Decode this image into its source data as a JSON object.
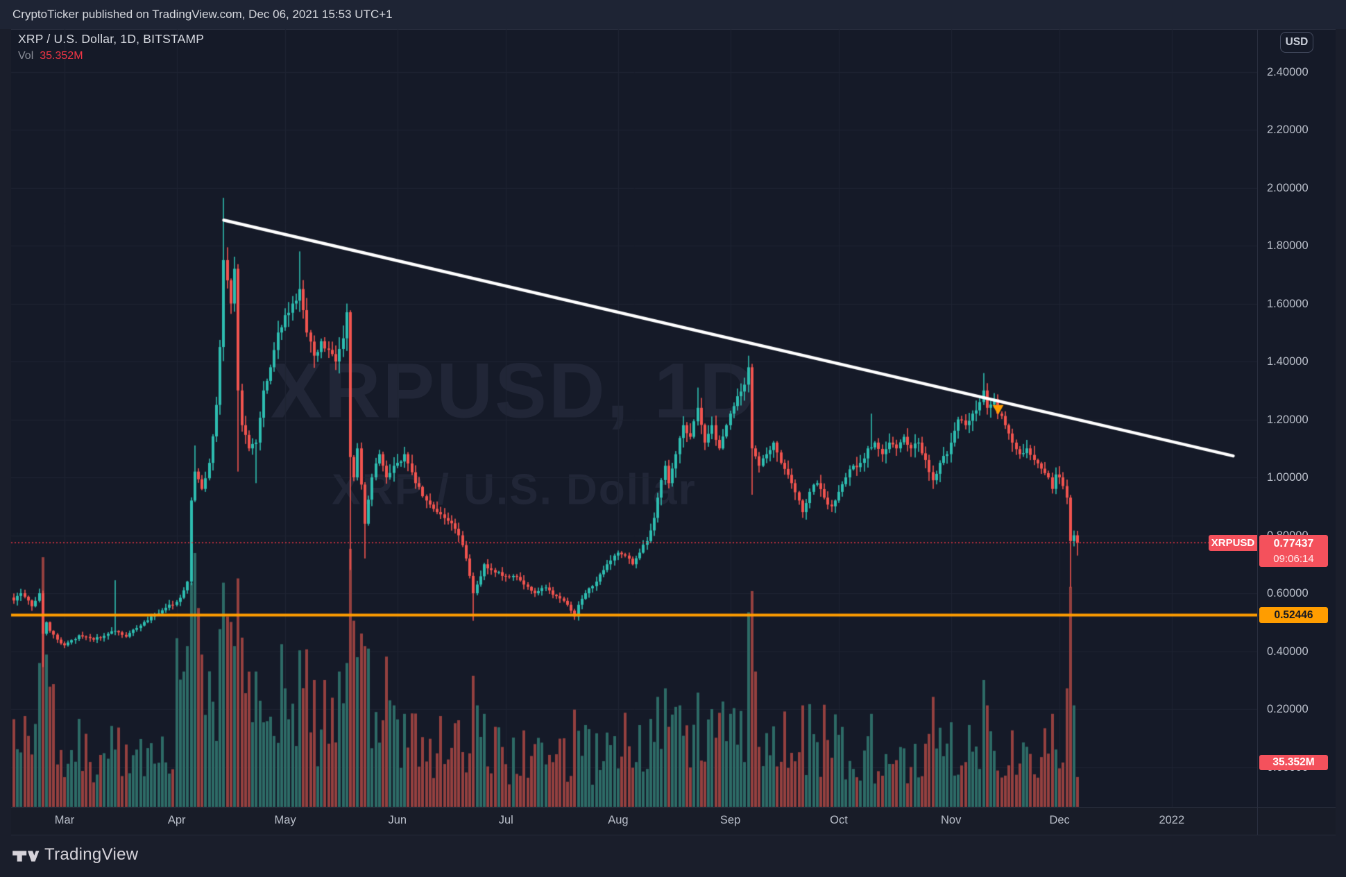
{
  "publish_bar": {
    "text": "CryptoTicker published on TradingView.com, Dec 06, 2021 15:53 UTC+1"
  },
  "header": {
    "symbol_line": "XRP / U.S. Dollar, 1D, BITSTAMP",
    "vol_label": "Vol",
    "vol_value": "35.352M"
  },
  "watermark": {
    "line1": "XRPUSD, 1D",
    "line2": "XRP / U.S. Dollar"
  },
  "price_axis": {
    "currency_badge": "USD",
    "labels": [
      {
        "text": "2.40000",
        "price": 2.4
      },
      {
        "text": "2.20000",
        "price": 2.2
      },
      {
        "text": "2.00000",
        "price": 2.0
      },
      {
        "text": "1.80000",
        "price": 1.8
      },
      {
        "text": "1.60000",
        "price": 1.6
      },
      {
        "text": "1.40000",
        "price": 1.4
      },
      {
        "text": "1.20000",
        "price": 1.2
      },
      {
        "text": "1.00000",
        "price": 1.0
      },
      {
        "text": "0.80000",
        "price": 0.8
      },
      {
        "text": "0.60000",
        "price": 0.6
      },
      {
        "text": "0.40000",
        "price": 0.4
      },
      {
        "text": "0.20000",
        "price": 0.2
      },
      {
        "text": "0.00000",
        "price": 0.0
      }
    ],
    "price_tag": {
      "symbol": "XRPUSD",
      "price": "0.77437",
      "countdown": "09:06:14",
      "price_value": 0.77437
    },
    "level_tag": {
      "text": "0.52446",
      "value": 0.52446
    },
    "volume_tag": {
      "text": "35.352M",
      "value_millions": 35.352
    }
  },
  "time_axis": {
    "labels": [
      {
        "text": "Mar",
        "day": 14
      },
      {
        "text": "Apr",
        "day": 45
      },
      {
        "text": "May",
        "day": 75
      },
      {
        "text": "Jun",
        "day": 106
      },
      {
        "text": "Jul",
        "day": 136
      },
      {
        "text": "Aug",
        "day": 167
      },
      {
        "text": "Sep",
        "day": 198
      },
      {
        "text": "Oct",
        "day": 228
      },
      {
        "text": "Nov",
        "day": 259
      },
      {
        "text": "Dec",
        "day": 289
      },
      {
        "text": "2022",
        "day": 320
      }
    ]
  },
  "footer": {
    "brand": "TradingView"
  },
  "chart_data": {
    "type": "candlestick_with_volume",
    "symbol": "XRPUSD",
    "exchange": "BITSTAMP",
    "interval": "1D",
    "title": "XRP / U.S. Dollar",
    "date_range": {
      "start": "2021-02-15",
      "end": "2021-12-06"
    },
    "ylim": [
      -0.14,
      2.55
    ],
    "grid": true,
    "last_price": 0.77437,
    "last_volume_millions": 35.352,
    "support_level": 0.52446,
    "colors": {
      "up": "#2ebdb0",
      "down": "#f1544f",
      "vol_up": "#2d6b66",
      "vol_down": "#94403f",
      "grid": "#1f2433",
      "trendline": "#ffffff",
      "support_line": "#ff9d00",
      "last_price_line": "#f23645",
      "marker": "#ff9d00"
    },
    "trendline": {
      "from": {
        "day": 58,
        "price": 1.888
      },
      "to": {
        "day": 337,
        "price": 1.074
      },
      "width": 4.5
    },
    "marker": {
      "day": 272,
      "price": 1.25,
      "shape": "triangle-down",
      "meaning": "trendline-touch"
    },
    "anchors_day_close": [
      [
        0,
        0.575
      ],
      [
        2,
        0.6
      ],
      [
        5,
        0.555
      ],
      [
        7,
        0.6
      ],
      [
        8,
        0.46
      ],
      [
        9,
        0.5
      ],
      [
        10,
        0.47
      ],
      [
        12,
        0.44
      ],
      [
        14,
        0.42
      ],
      [
        18,
        0.455
      ],
      [
        22,
        0.44
      ],
      [
        26,
        0.46
      ],
      [
        28,
        0.47
      ],
      [
        31,
        0.45
      ],
      [
        34,
        0.48
      ],
      [
        38,
        0.52
      ],
      [
        42,
        0.55
      ],
      [
        45,
        0.57
      ],
      [
        47,
        0.61
      ],
      [
        48,
        0.64
      ],
      [
        49,
        0.92
      ],
      [
        50,
        1.02
      ],
      [
        52,
        0.96
      ],
      [
        54,
        1.05
      ],
      [
        56,
        1.25
      ],
      [
        57,
        1.45
      ],
      [
        58,
        1.75
      ],
      [
        59,
        1.68
      ],
      [
        60,
        1.6
      ],
      [
        61,
        1.72
      ],
      [
        62,
        1.3
      ],
      [
        63,
        1.18
      ],
      [
        65,
        1.1
      ],
      [
        67,
        1.12
      ],
      [
        69,
        1.3
      ],
      [
        71,
        1.38
      ],
      [
        73,
        1.5
      ],
      [
        75,
        1.56
      ],
      [
        77,
        1.6
      ],
      [
        79,
        1.65
      ],
      [
        81,
        1.5
      ],
      [
        83,
        1.42
      ],
      [
        85,
        1.47
      ],
      [
        87,
        1.44
      ],
      [
        89,
        1.4
      ],
      [
        91,
        1.48
      ],
      [
        92,
        1.57
      ],
      [
        93,
        1.07
      ],
      [
        94,
        1.0
      ],
      [
        95,
        1.1
      ],
      [
        97,
        0.84
      ],
      [
        99,
        1.0
      ],
      [
        101,
        1.08
      ],
      [
        103,
        1.0
      ],
      [
        105,
        1.04
      ],
      [
        106,
        1.05
      ],
      [
        108,
        1.08
      ],
      [
        111,
        0.98
      ],
      [
        114,
        0.92
      ],
      [
        117,
        0.88
      ],
      [
        120,
        0.85
      ],
      [
        123,
        0.8
      ],
      [
        125,
        0.72
      ],
      [
        126,
        0.66
      ],
      [
        127,
        0.6
      ],
      [
        128,
        0.63
      ],
      [
        130,
        0.7
      ],
      [
        132,
        0.68
      ],
      [
        135,
        0.66
      ],
      [
        138,
        0.66
      ],
      [
        141,
        0.63
      ],
      [
        144,
        0.6
      ],
      [
        147,
        0.62
      ],
      [
        150,
        0.59
      ],
      [
        153,
        0.56
      ],
      [
        154,
        0.54
      ],
      [
        155,
        0.52
      ],
      [
        156,
        0.56
      ],
      [
        158,
        0.6
      ],
      [
        161,
        0.64
      ],
      [
        164,
        0.7
      ],
      [
        166,
        0.73
      ],
      [
        167,
        0.74
      ],
      [
        169,
        0.73
      ],
      [
        171,
        0.7
      ],
      [
        173,
        0.74
      ],
      [
        175,
        0.78
      ],
      [
        177,
        0.86
      ],
      [
        178,
        0.93
      ],
      [
        180,
        1.04
      ],
      [
        181,
        0.98
      ],
      [
        183,
        1.08
      ],
      [
        185,
        1.18
      ],
      [
        187,
        1.14
      ],
      [
        189,
        1.24
      ],
      [
        191,
        1.12
      ],
      [
        193,
        1.18
      ],
      [
        195,
        1.1
      ],
      [
        197,
        1.18
      ],
      [
        198,
        1.22
      ],
      [
        200,
        1.28
      ],
      [
        202,
        1.32
      ],
      [
        203,
        1.38
      ],
      [
        204,
        1.1
      ],
      [
        206,
        1.04
      ],
      [
        208,
        1.08
      ],
      [
        210,
        1.12
      ],
      [
        212,
        1.05
      ],
      [
        215,
        0.98
      ],
      [
        217,
        0.92
      ],
      [
        218,
        0.88
      ],
      [
        220,
        0.95
      ],
      [
        222,
        0.98
      ],
      [
        224,
        0.93
      ],
      [
        226,
        0.9
      ],
      [
        227,
        0.92
      ],
      [
        228,
        0.95
      ],
      [
        230,
        1.0
      ],
      [
        232,
        1.04
      ],
      [
        234,
        1.05
      ],
      [
        236,
        1.1
      ],
      [
        238,
        1.12
      ],
      [
        240,
        1.08
      ],
      [
        242,
        1.12
      ],
      [
        244,
        1.1
      ],
      [
        246,
        1.14
      ],
      [
        248,
        1.1
      ],
      [
        250,
        1.12
      ],
      [
        252,
        1.06
      ],
      [
        254,
        0.99
      ],
      [
        256,
        1.05
      ],
      [
        258,
        1.08
      ],
      [
        259,
        1.12
      ],
      [
        261,
        1.2
      ],
      [
        263,
        1.18
      ],
      [
        265,
        1.22
      ],
      [
        267,
        1.26
      ],
      [
        268,
        1.3
      ],
      [
        269,
        1.24
      ],
      [
        271,
        1.27
      ],
      [
        272,
        1.22
      ],
      [
        274,
        1.18
      ],
      [
        276,
        1.12
      ],
      [
        278,
        1.08
      ],
      [
        280,
        1.1
      ],
      [
        282,
        1.06
      ],
      [
        284,
        1.03
      ],
      [
        286,
        1.0
      ],
      [
        287,
        0.96
      ],
      [
        288,
        1.01
      ],
      [
        289,
        1.0
      ],
      [
        290,
        0.97
      ],
      [
        291,
        0.93
      ],
      [
        292,
        0.78
      ],
      [
        293,
        0.8
      ],
      [
        294,
        0.774
      ]
    ],
    "events": {
      "7": {
        "vol": 170
      },
      "8": {
        "low": 0.345,
        "vol": 295
      },
      "9": {
        "vol": 180
      },
      "28": {
        "high": 0.645
      },
      "47": {
        "vol": 160
      },
      "48": {
        "vol": 190
      },
      "49": {
        "vol": 265
      },
      "50": {
        "high": 1.11,
        "vol": 300
      },
      "51": {
        "vol": 235
      },
      "52": {
        "vol": 180
      },
      "57": {
        "vol": 210
      },
      "58": {
        "high": 1.965,
        "vol": 265
      },
      "59": {
        "vol": 225
      },
      "61": {
        "vol": 190
      },
      "62": {
        "low": 1.02,
        "vol": 270
      },
      "63": {
        "vol": 200
      },
      "67": {
        "low": 0.98,
        "vol": 160
      },
      "75": {
        "vol": 140
      },
      "79": {
        "high": 1.78,
        "vol": 185
      },
      "86": {
        "vol": 150
      },
      "90": {
        "vol": 160
      },
      "92": {
        "high": 1.6,
        "vol": 170
      },
      "93": {
        "low": 0.68,
        "vol": 305
      },
      "94": {
        "vol": 220
      },
      "97": {
        "low": 0.72,
        "vol": 190
      },
      "105": {
        "vol": 120
      },
      "108": {
        "vol": 110
      },
      "127": {
        "low": 0.505,
        "vol": 155
      },
      "128": {
        "vol": 120
      },
      "155": {
        "low": 0.508,
        "vol": 115
      },
      "156": {
        "vol": 90
      },
      "178": {
        "vol": 130
      },
      "180": {
        "vol": 140
      },
      "184": {
        "vol": 120
      },
      "189": {
        "high": 1.31,
        "vol": 135
      },
      "198": {
        "vol": 110
      },
      "203": {
        "high": 1.42,
        "vol": 230
      },
      "204": {
        "low": 0.94,
        "vol": 255
      },
      "205": {
        "vol": 160
      },
      "218": {
        "low": 0.86,
        "vol": 120
      },
      "237": {
        "high": 1.22,
        "vol": 110
      },
      "254": {
        "low": 0.96,
        "vol": 130
      },
      "259": {
        "vol": 100
      },
      "268": {
        "high": 1.36,
        "vol": 150
      },
      "269": {
        "vol": 120
      },
      "287": {
        "vol": 110
      },
      "291": {
        "vol": 140
      },
      "292": {
        "low": 0.62,
        "vol": 260
      },
      "293": {
        "vol": 120
      },
      "294": {
        "low": 0.73,
        "vol": 35.352
      }
    },
    "volume_base_eras_millions": [
      {
        "until": 13,
        "base": 90
      },
      {
        "until": 44,
        "base": 60
      },
      {
        "until": 74,
        "base": 120
      },
      {
        "until": 105,
        "base": 100
      },
      {
        "until": 135,
        "base": 70
      },
      {
        "until": 166,
        "base": 55
      },
      {
        "until": 197,
        "base": 75
      },
      {
        "until": 227,
        "base": 70
      },
      {
        "until": 258,
        "base": 55
      },
      {
        "until": 288,
        "base": 60
      },
      {
        "until": 294,
        "base": 70
      }
    ],
    "first_open": 0.585,
    "num_days": 295
  }
}
